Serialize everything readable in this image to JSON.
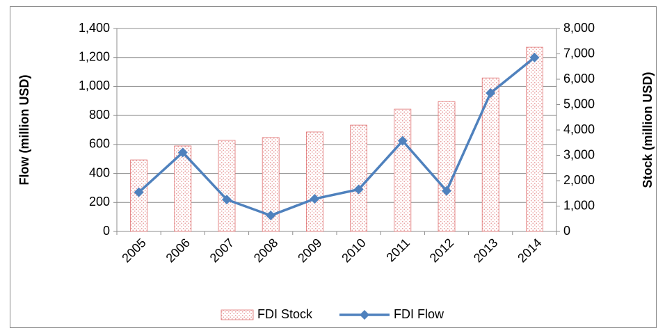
{
  "chart_data": {
    "type": "bar-line",
    "categories": [
      "2005",
      "2006",
      "2007",
      "2008",
      "2009",
      "2010",
      "2011",
      "2012",
      "2013",
      "2014"
    ],
    "ylabel": "Flow (million USD)",
    "y2label": "Stock (million USD)",
    "series": [
      {
        "name": "FDI Stock",
        "type": "bar",
        "axis": "y2",
        "color": "#e07070",
        "values": [
          2820,
          3370,
          3590,
          3700,
          3920,
          4190,
          4820,
          5120,
          6050,
          7260
        ]
      },
      {
        "name": "FDI Flow",
        "type": "line",
        "axis": "y",
        "color": "#4f81bd",
        "values": [
          270,
          545,
          220,
          110,
          225,
          290,
          625,
          280,
          955,
          1200
        ]
      }
    ],
    "ylim": [
      0,
      1400
    ],
    "yticks": [
      0,
      200,
      400,
      600,
      800,
      {
        "value": 1000,
        "label": "1,000"
      },
      {
        "value": 1200,
        "label": "1,200"
      },
      {
        "value": 1400,
        "label": "1,400"
      }
    ],
    "y2lim": [
      0,
      8000
    ],
    "y2ticks": [
      0,
      {
        "value": 1000,
        "label": "1,000"
      },
      {
        "value": 2000,
        "label": "2,000"
      },
      {
        "value": 3000,
        "label": "3,000"
      },
      {
        "value": 4000,
        "label": "4,000"
      },
      {
        "value": 5000,
        "label": "5,000"
      },
      {
        "value": 6000,
        "label": "6,000"
      },
      {
        "value": 7000,
        "label": "7,000"
      },
      {
        "value": 8000,
        "label": "8,000"
      }
    ],
    "grid": true,
    "legend": "bottom"
  }
}
